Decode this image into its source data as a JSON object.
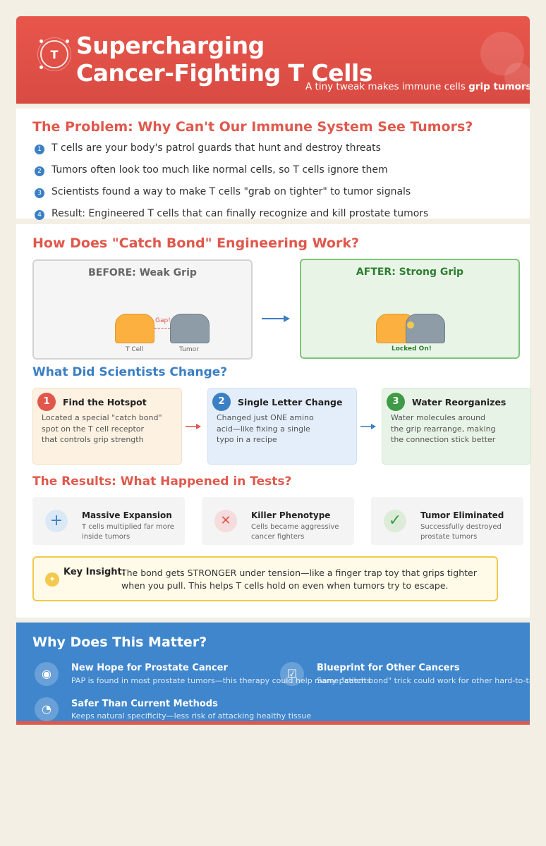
{
  "header": {
    "logo_letter": "T",
    "title_line1": "Supercharging",
    "title_line2": "Cancer-Fighting T Cells",
    "subtitle_plain": "A tiny tweak makes immune cells ",
    "subtitle_bold": "grip tumors tighter"
  },
  "problem": {
    "title": "The Problem: Why Can't Our Immune System See Tumors?",
    "items": [
      {
        "num": "1",
        "text": "T cells are your body's patrol guards that hunt and destroy threats"
      },
      {
        "num": "2",
        "text": "Tumors often look too much like normal cells, so T cells ignore them"
      },
      {
        "num": "3",
        "text": "Scientists found a way to make T cells \"grab on tighter\" to tumor signals"
      },
      {
        "num": "4",
        "text": "Result: Engineered T cells that can finally recognize and kill prostate tumors"
      }
    ]
  },
  "catch_bond": {
    "title": "How Does \"Catch Bond\" Engineering Work?",
    "before": {
      "title": "BEFORE: Weak Grip",
      "gap_label": "Gap!",
      "tcell_label": "T Cell",
      "tumor_label": "Tumor"
    },
    "after": {
      "title": "AFTER: Strong Grip",
      "locked_label": "Locked On!"
    },
    "arrow": "→"
  },
  "changes": {
    "title": "What Did Scientists Change?",
    "steps": [
      {
        "num": "1",
        "title": "Find the Hotspot",
        "lines": [
          "Located a special \"catch bond\"",
          "spot on the T cell receptor",
          "that controls grip strength"
        ],
        "color": "#e0584c",
        "bg": "#fdf1e1"
      },
      {
        "num": "2",
        "title": "Single Letter Change",
        "lines": [
          "Changed just ONE amino",
          "acid—like fixing a single",
          "typo in a recipe"
        ],
        "color": "#3b7fc4",
        "bg": "#e3eefa"
      },
      {
        "num": "3",
        "title": "Water Reorganizes",
        "lines": [
          "Water molecules around",
          "the grip rearrange, making",
          "the connection stick better"
        ],
        "color": "#3f9a47",
        "bg": "#e7f3e6"
      }
    ],
    "arrow": "→"
  },
  "results": {
    "title": "The Results: What Happened in Tests?",
    "items": [
      {
        "icon": "plus-icon",
        "glyph": "+",
        "title": "Massive Expansion",
        "lines": [
          "T cells multiplied far more",
          "inside tumors"
        ],
        "color": "#3b7fc4",
        "bg": "#dbe8f6"
      },
      {
        "icon": "x-icon",
        "glyph": "✕",
        "title": "Killer Phenotype",
        "lines": [
          "Cells became aggressive",
          "cancer fighters"
        ],
        "color": "#e0584c",
        "bg": "#f6dcdc"
      },
      {
        "icon": "check-icon",
        "glyph": "✓",
        "title": "Tumor Eliminated",
        "lines": [
          "Successfully destroyed",
          "prostate tumors"
        ],
        "color": "#3f9a47",
        "bg": "#dcecd9"
      }
    ]
  },
  "insight": {
    "label": "Key Insight:",
    "line1": "The bond gets STRONGER under tension—like a finger trap toy that grips tighter",
    "line2": "when you pull. This helps T cells hold on even when tumors try to escape."
  },
  "matter": {
    "title": "Why Does This Matter?",
    "items": [
      {
        "icon": "eye-icon",
        "glyph": "◉",
        "title": "New Hope for Prostate Cancer",
        "desc": "PAP is found in most prostate tumors—this therapy could help many patients"
      },
      {
        "icon": "checkbox-icon",
        "glyph": "☑",
        "title": "Blueprint for Other Cancers",
        "desc": "Same \"catch bond\" trick could work for other hard-to-target cancers"
      },
      {
        "icon": "shield-person-icon",
        "glyph": "◔",
        "title": "Safer Than Current Methods",
        "desc": "Keeps natural specificity—less risk of attacking healthy tissue"
      }
    ]
  }
}
